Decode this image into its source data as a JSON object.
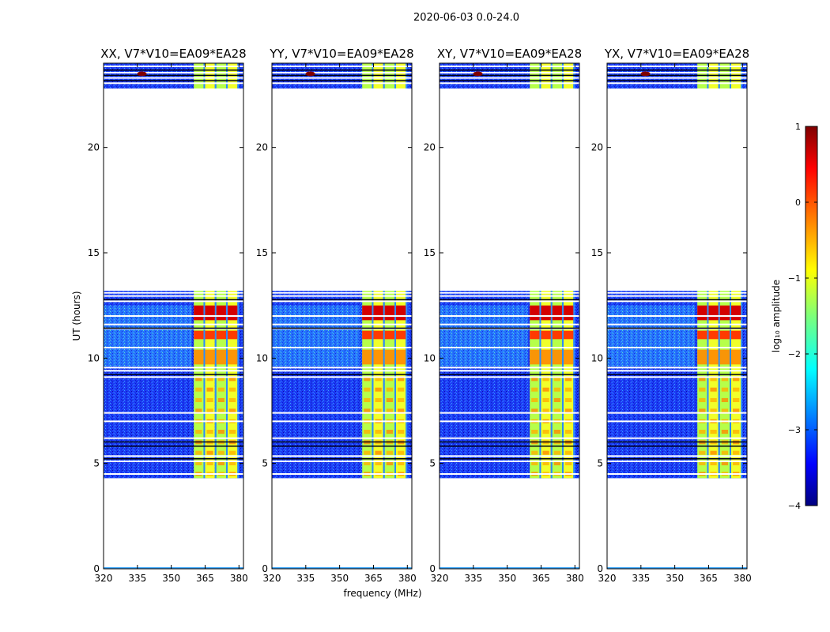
{
  "figure": {
    "suptitle": "2020-06-03 0.0-24.0"
  },
  "chart_data": {
    "type": "heatmap",
    "colormap": "jet",
    "xlabel": "frequency (MHz)",
    "ylabel": "UT (hours)",
    "xlim": [
      320,
      382
    ],
    "ylim": [
      0,
      24
    ],
    "xticks": [
      320,
      335,
      350,
      365,
      380
    ],
    "yticks": [
      0,
      5,
      10,
      15,
      20
    ],
    "colorbar": {
      "label": "log₁₀ amplitude",
      "range": [
        -4,
        1
      ],
      "ticks": [
        1,
        0,
        -1,
        -2,
        -3,
        -4
      ]
    },
    "data_blocks_ut_hours": [
      [
        4.3,
        13.2
      ],
      [
        22.8,
        24.0
      ]
    ],
    "rfi_band_mhz": [
      360,
      380
    ],
    "panels": [
      {
        "title": "XX, V7*V10=EA09*EA28",
        "pol": "XX"
      },
      {
        "title": "YY, V7*V10=EA09*EA28",
        "pol": "YY"
      },
      {
        "title": "XY, V7*V10=EA09*EA28",
        "pol": "XY"
      },
      {
        "title": "YX, V7*V10=EA09*EA28",
        "pol": "YX"
      }
    ]
  }
}
